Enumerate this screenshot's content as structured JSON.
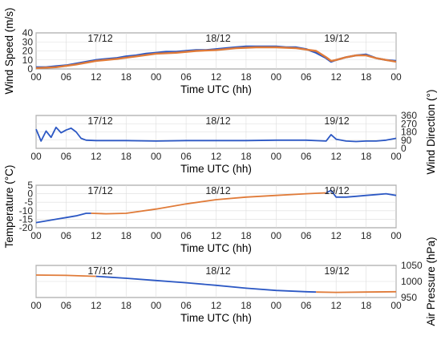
{
  "chart_data": [
    {
      "type": "line",
      "xlabel": "Time UTC (hh)",
      "ylabel": "Wind Speed (m/s)",
      "ylabel_side": "left",
      "x_tick_labels": [
        "00",
        "06",
        "12",
        "18",
        "00",
        "06",
        "12",
        "18",
        "00",
        "06",
        "12",
        "18",
        "00"
      ],
      "x_range_hours": [
        0,
        72
      ],
      "day_labels": [
        "17/12",
        "18/12",
        "19/12"
      ],
      "ylim": [
        0,
        40
      ],
      "yticks": [
        0,
        10,
        20,
        30,
        40
      ],
      "grid": true,
      "series": [
        {
          "color": "#2c58c4",
          "x": [
            0,
            2,
            4,
            6,
            8,
            10,
            12,
            14,
            16,
            18,
            20,
            22,
            24,
            26,
            28,
            30,
            32,
            34,
            36,
            38,
            40,
            42,
            44,
            46,
            48,
            50,
            52,
            54,
            56,
            58,
            59,
            60,
            62,
            64,
            66,
            68,
            70,
            72
          ],
          "y": [
            2,
            2,
            3,
            4,
            6,
            8,
            10,
            11,
            12,
            14,
            15,
            17,
            18,
            19,
            19,
            20,
            21,
            21,
            22,
            23,
            24,
            25,
            25,
            25,
            25,
            24,
            24,
            22,
            18,
            12,
            8,
            10,
            13,
            15,
            16,
            12,
            10,
            9
          ]
        },
        {
          "color": "#e07b39",
          "x": [
            0,
            4,
            8,
            12,
            16,
            20,
            24,
            28,
            32,
            36,
            40,
            44,
            48,
            52,
            56,
            58,
            59,
            60,
            62,
            64,
            66,
            68,
            70,
            72
          ],
          "y": [
            1,
            2,
            5,
            9,
            11,
            14,
            17,
            18,
            20,
            21,
            23,
            24,
            24,
            23,
            20,
            13,
            9,
            10,
            13,
            15,
            15,
            12,
            10,
            8
          ]
        }
      ]
    },
    {
      "type": "line",
      "xlabel": "Time UTC (hh)",
      "ylabel": "Wind Direction (°)",
      "ylabel_side": "right",
      "x_tick_labels": [
        "00",
        "06",
        "12",
        "18",
        "00",
        "06",
        "12",
        "18",
        "00",
        "06",
        "12",
        "18",
        "00"
      ],
      "x_range_hours": [
        0,
        72
      ],
      "day_labels": [
        "17/12",
        "18/12",
        "19/12"
      ],
      "ylim": [
        0,
        360
      ],
      "yticks": [
        0,
        90,
        180,
        270,
        360
      ],
      "grid": true,
      "series": [
        {
          "color": "#2c58c4",
          "x": [
            0,
            1,
            2,
            3,
            4,
            5,
            6,
            7,
            8,
            9,
            10,
            12,
            18,
            24,
            30,
            36,
            42,
            48,
            54,
            58,
            59,
            60,
            62,
            64,
            66,
            68,
            70,
            72
          ],
          "y": [
            210,
            80,
            190,
            120,
            230,
            170,
            200,
            220,
            180,
            110,
            90,
            85,
            85,
            80,
            85,
            85,
            85,
            90,
            90,
            80,
            150,
            100,
            80,
            75,
            80,
            80,
            90,
            110
          ]
        }
      ]
    },
    {
      "type": "line",
      "xlabel": "Time UTC (hh)",
      "ylabel": "Temperature (°C)",
      "ylabel_side": "left",
      "x_tick_labels": [
        "00",
        "06",
        "12",
        "18",
        "00",
        "06",
        "12",
        "18",
        "00",
        "06",
        "12",
        "18",
        "00"
      ],
      "x_range_hours": [
        0,
        72
      ],
      "day_labels": [
        "17/12",
        "18/12",
        "19/12"
      ],
      "ylim": [
        -20,
        5
      ],
      "yticks": [
        -20,
        -15,
        -10,
        -5,
        0,
        5
      ],
      "grid": true,
      "series": [
        {
          "color": "#2c58c4",
          "x": [
            0,
            2,
            4,
            6,
            8,
            10,
            11
          ],
          "y": [
            -17,
            -16,
            -15,
            -14,
            -13,
            -11.5,
            -11.5
          ]
        },
        {
          "color": "#e07b39",
          "x": [
            11,
            14,
            18,
            24,
            30,
            36,
            42,
            48,
            54,
            58
          ],
          "y": [
            -11.5,
            -11.8,
            -11.5,
            -9,
            -6,
            -3.5,
            -2,
            -1,
            0,
            0.5
          ]
        },
        {
          "color": "#2c58c4",
          "x": [
            58,
            59,
            60,
            62,
            64,
            66,
            68,
            70,
            72
          ],
          "y": [
            0.5,
            2,
            -2,
            -2,
            -1.5,
            -1,
            -0.5,
            0,
            -1
          ]
        }
      ]
    },
    {
      "type": "line",
      "xlabel": "Time UTC (hh)",
      "ylabel": "Air Pressure (hPa)",
      "ylabel_side": "right",
      "x_tick_labels": [
        "00",
        "06",
        "12",
        "18",
        "00",
        "06",
        "12",
        "18",
        "00",
        "06",
        "12",
        "18",
        "00"
      ],
      "x_range_hours": [
        0,
        72
      ],
      "day_labels": [
        "17/12",
        "18/12",
        "19/12"
      ],
      "ylim": [
        950,
        1050
      ],
      "yticks": [
        950,
        1000,
        1050
      ],
      "grid": true,
      "series": [
        {
          "color": "#e07b39",
          "x": [
            0,
            6,
            12
          ],
          "y": [
            1020,
            1019,
            1016
          ]
        },
        {
          "color": "#2c58c4",
          "x": [
            12,
            18,
            24,
            30,
            36,
            42,
            48,
            54,
            56
          ],
          "y": [
            1016,
            1010,
            1003,
            996,
            988,
            979,
            972,
            968,
            967
          ]
        },
        {
          "color": "#e07b39",
          "x": [
            56,
            60,
            66,
            72
          ],
          "y": [
            967,
            966,
            967,
            968
          ]
        }
      ]
    }
  ]
}
